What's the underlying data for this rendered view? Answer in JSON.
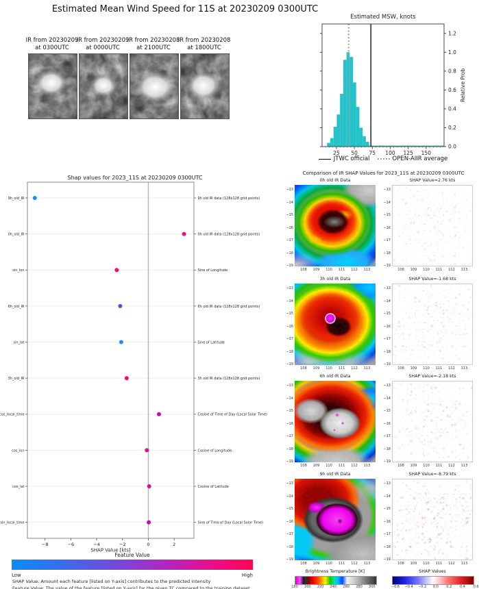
{
  "header": {
    "title": "Estimated Mean Wind Speed for 11S at 20230209 0300UTC"
  },
  "ir_thumbnails": [
    {
      "line1": "IR from 20230209",
      "line2": "at 0300UTC"
    },
    {
      "line1": "IR from 20230209",
      "line2": "at 0000UTC"
    },
    {
      "line1": "IR from 20230208",
      "line2": "at 2100UTC"
    },
    {
      "line1": "IR from 20230208",
      "line2": "at 1800UTC"
    }
  ],
  "chart_data": [
    {
      "id": "msw_histogram",
      "type": "bar",
      "title": "Estimated MSW, knots",
      "ylabel": "Relative Prob",
      "xlim": [
        5,
        175
      ],
      "ylim": [
        0,
        1.3
      ],
      "xticks": [
        25,
        50,
        75,
        100,
        125,
        150
      ],
      "yticks": [
        0.0,
        0.2,
        0.4,
        0.6,
        0.8,
        1.0,
        1.2
      ],
      "bar_color": "#26c2ca",
      "bins_start_kt": 12,
      "bin_width_kt": 4.5,
      "values": [
        0.04,
        0.09,
        0.21,
        0.34,
        0.56,
        0.92,
        1.0,
        0.95,
        0.68,
        0.42,
        0.2,
        0.11,
        0.05
      ],
      "jtwc_official_kt": 73,
      "open_aiir_average_kt": 42,
      "legend": [
        {
          "label": "JTWC official",
          "style": "solid-black"
        },
        {
          "label": "OPEN-AIIR average",
          "style": "dotted-gray"
        }
      ]
    },
    {
      "id": "shap_dot_plot",
      "type": "scatter",
      "title": "Shap values for 2023_11S at 20230209 0300UTC",
      "xlabel": "SHAP Value [kts]",
      "xlim": [
        -9.4,
        3.5
      ],
      "xticks": [
        -8,
        -6,
        -4,
        -2,
        0,
        2
      ],
      "features": [
        {
          "name": "9h_old_IR",
          "desc": "9h old IR data (128x128 grid points)",
          "value": -8.79,
          "color": "#1f8bf5"
        },
        {
          "name": "0h_old_IR",
          "desc": "0h old IR data (128x128 grid points)",
          "value": 2.76,
          "color": "#e3128e"
        },
        {
          "name": "sin_lon",
          "desc": "Sine of Longitude",
          "value": -2.45,
          "color": "#f0125f"
        },
        {
          "name": "6h_old_IR",
          "desc": "6h old IR data (128x128 grid points)",
          "value": -2.18,
          "color": "#7b3ad0"
        },
        {
          "name": "sin_lat",
          "desc": "Sine of Latitude",
          "value": -2.1,
          "color": "#1f8bf5"
        },
        {
          "name": "3h_old_IR",
          "desc": "3h old IR data (128x128 grid points)",
          "value": -1.68,
          "color": "#ee0f72"
        },
        {
          "name": "cos_local_time",
          "desc": "Cosine of Time of Day (Local Solar Time)",
          "value": 0.82,
          "color": "#cf0aa2"
        },
        {
          "name": "cos_lon",
          "desc": "Cosine of Longitude",
          "value": -0.12,
          "color": "#e00e90"
        },
        {
          "name": "cos_lat",
          "desc": "Cosine of Latitude",
          "value": 0.06,
          "color": "#d80c9b"
        },
        {
          "name": "sin_local_time",
          "desc": "Sine of Time of Day (Local Solar Time)",
          "value": 0.03,
          "color": "#c909ab"
        }
      ],
      "colorbar": {
        "title": "Feature Value",
        "low_label": "Low",
        "high_label": "High"
      },
      "footnotes": [
        "SHAP Value: Amount each feature [listed on Y-axis] contributes to the predicted intensity",
        "Feature Value: The value of the feature [listed on Y-axis] for the given TC compared to the training dataset"
      ]
    },
    {
      "id": "ir_shap_comparison",
      "type": "heatmap",
      "title": "Comparison of IR SHAP Values for 2023_11S at 20230209 0300UTC",
      "rows": [
        {
          "ir_title": "0h old IR Data",
          "shap_title": "SHAP Value=2.76 kts",
          "shap_kts": 2.76
        },
        {
          "ir_title": "3h old IR Data",
          "shap_title": "SHAP Value=-1.68 kts",
          "shap_kts": -1.68
        },
        {
          "ir_title": "6h old IR Data",
          "shap_title": "SHAP Value=-2.18 kts",
          "shap_kts": -2.18
        },
        {
          "ir_title": "9h old IR Data",
          "shap_title": "SHAP Value=-8.79 kts",
          "shap_kts": -8.79
        }
      ],
      "xticks": [
        108,
        109,
        110,
        111,
        112,
        113
      ],
      "yticks": [
        -13,
        -14,
        -15,
        -16,
        -17,
        -18,
        -19
      ],
      "colorbars": [
        {
          "title": "Brightness Temperature [K]",
          "ticks": [
            180,
            200,
            220,
            240,
            260,
            280,
            300
          ]
        },
        {
          "title": "SHAP Values",
          "ticks": [
            -0.6,
            -0.4,
            -0.2,
            0.0,
            0.2,
            0.4,
            0.6
          ]
        }
      ]
    }
  ]
}
